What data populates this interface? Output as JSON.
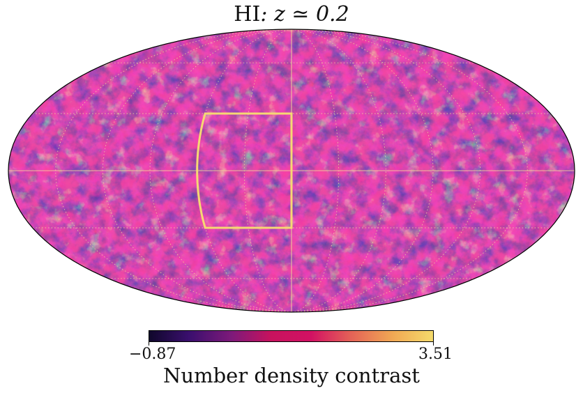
{
  "title": {
    "prefix": "HI",
    "suffix": ": z ≃ 0.2"
  },
  "projection": "mollweide",
  "colormap": {
    "name": "magma-like",
    "stops": [
      "#10072b",
      "#3a0f6e",
      "#7d1a7a",
      "#c8125e",
      "#d21163",
      "#e46257",
      "#f1a954",
      "#f4da6b"
    ]
  },
  "colorbar": {
    "min_label": "−0.87",
    "max_label": "3.51",
    "min": -0.87,
    "max": 3.51,
    "label": "Number density contrast"
  },
  "graticule": {
    "color": "#f0d89a",
    "style": "dotted",
    "meridians_deg": [
      -150,
      -120,
      -90,
      -60,
      -30,
      0,
      30,
      60,
      90,
      120,
      150
    ],
    "parallels_deg": [
      -60,
      -30,
      0,
      30,
      60
    ]
  },
  "region_box": {
    "color": "#f6d873",
    "lon_min_deg": 0,
    "lon_max_deg": 60,
    "lat_min_deg": -30,
    "lat_max_deg": 30
  }
}
